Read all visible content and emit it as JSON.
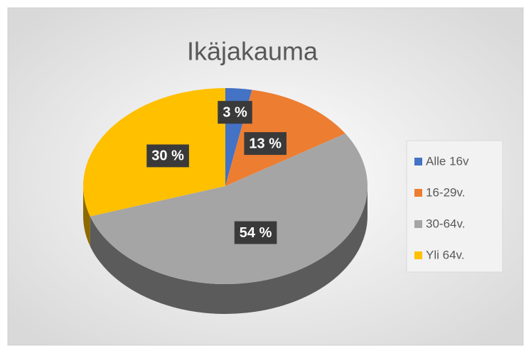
{
  "chart_data": {
    "type": "pie",
    "title": "Ikäjakauma",
    "categories": [
      "Alle 16v",
      "16-29v.",
      "30-64v.",
      "Yli 64v."
    ],
    "values": [
      3,
      13,
      54,
      30
    ],
    "value_labels": [
      "3 %",
      "13 %",
      "54 %",
      "30 %"
    ],
    "colors": [
      "#4472c4",
      "#ed7d31",
      "#a5a5a5",
      "#ffc000"
    ],
    "legend": "right"
  }
}
